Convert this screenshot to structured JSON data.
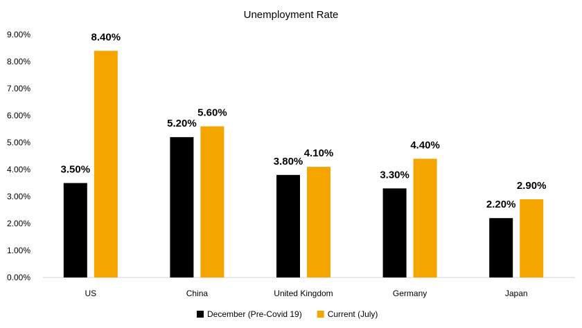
{
  "chart_data": {
    "type": "bar",
    "title": "Unemployment Rate",
    "xlabel": "",
    "ylabel": "",
    "ylim": [
      0,
      9
    ],
    "yticks": [
      "0.00%",
      "1.00%",
      "2.00%",
      "3.00%",
      "4.00%",
      "5.00%",
      "6.00%",
      "7.00%",
      "8.00%",
      "9.00%"
    ],
    "grid": false,
    "legend_position": "bottom",
    "categories": [
      "US",
      "China",
      "United Kingdom",
      "Germany",
      "Japan"
    ],
    "series": [
      {
        "name": "December (Pre-Covid 19)",
        "color": "#000000",
        "values": [
          3.5,
          5.2,
          3.8,
          3.3,
          2.2
        ],
        "labels": [
          "3.50%",
          "5.20%",
          "3.80%",
          "3.30%",
          "2.20%"
        ]
      },
      {
        "name": "Current (July)",
        "color": "#F5A500",
        "values": [
          8.4,
          5.6,
          4.1,
          4.4,
          2.9
        ],
        "labels": [
          "8.40%",
          "5.60%",
          "4.10%",
          "4.40%",
          "2.90%"
        ]
      }
    ]
  }
}
